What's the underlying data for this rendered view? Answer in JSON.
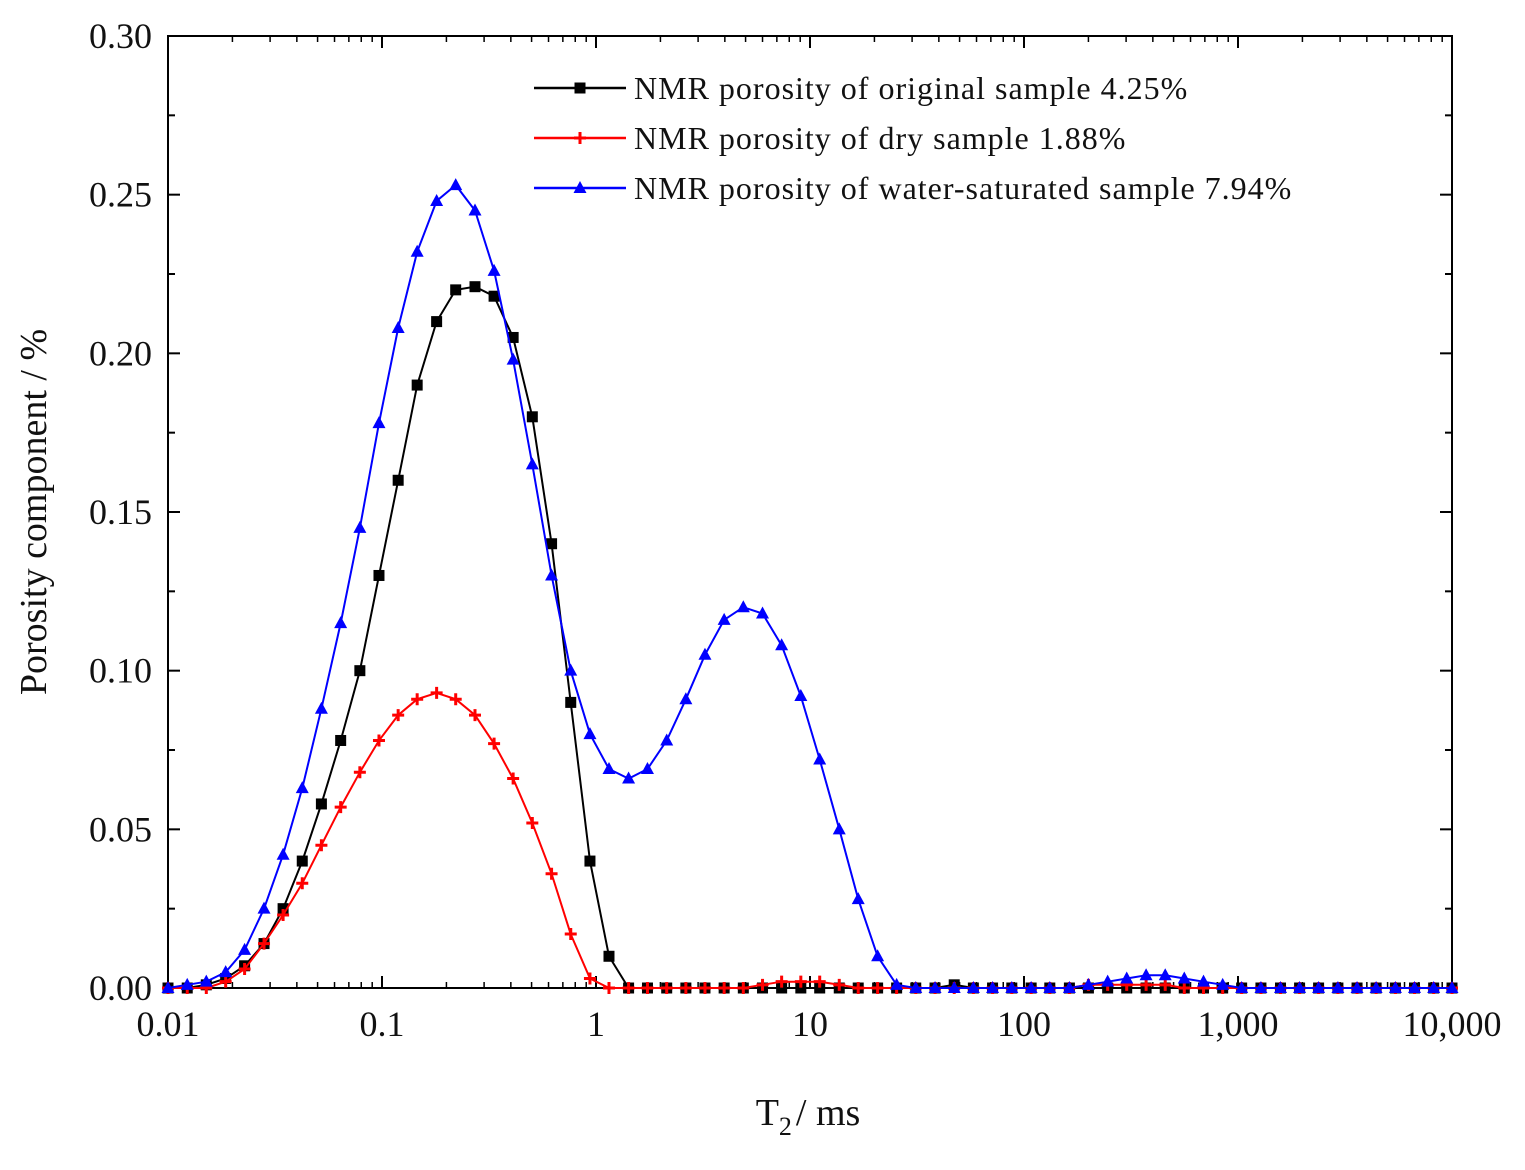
{
  "chart_data": {
    "type": "line",
    "title": "",
    "xlabel": {
      "main": "T",
      "sub": "2",
      "rest": "/ ms"
    },
    "ylabel": "Porosity component / %",
    "xscale": "log",
    "xlim": [
      0.01,
      10000
    ],
    "ylim": [
      0,
      0.3
    ],
    "xticks": [
      {
        "value": 0.01,
        "label": "0.01"
      },
      {
        "value": 0.1,
        "label": "0.1"
      },
      {
        "value": 1,
        "label": "1"
      },
      {
        "value": 10,
        "label": "10"
      },
      {
        "value": 100,
        "label": "100"
      },
      {
        "value": 1000,
        "label": "1,000"
      },
      {
        "value": 10000,
        "label": "10,000"
      }
    ],
    "yticks": [
      {
        "value": 0.0,
        "label": "0.00"
      },
      {
        "value": 0.05,
        "label": "0.05"
      },
      {
        "value": 0.1,
        "label": "0.10"
      },
      {
        "value": 0.15,
        "label": "0.15"
      },
      {
        "value": 0.2,
        "label": "0.20"
      },
      {
        "value": 0.25,
        "label": "0.25"
      },
      {
        "value": 0.3,
        "label": "0.30"
      }
    ],
    "legend_position": "top-right",
    "series": [
      {
        "name": "NMR porosity of original sample 4.25%",
        "color": "#000000",
        "marker": "square",
        "x": [
          0.01,
          0.0123,
          0.0151,
          0.0186,
          0.0228,
          0.0281,
          0.0345,
          0.0424,
          0.0521,
          0.0641,
          0.0788,
          0.0968,
          0.119,
          0.146,
          0.18,
          0.221,
          0.272,
          0.334,
          0.41,
          0.504,
          0.62,
          0.762,
          0.937,
          1.15,
          1.42,
          1.74,
          2.14,
          2.63,
          3.23,
          3.97,
          4.88,
          6.0,
          7.37,
          9.06,
          11.1,
          13.7,
          16.8,
          20.7,
          25.4,
          31.2,
          38.4,
          47.2,
          58.0,
          71.3,
          87.7,
          108,
          132,
          163,
          200,
          246,
          302,
          372,
          457,
          561,
          690,
          848,
          1040,
          1280,
          1580,
          1940,
          2380,
          2930,
          3600,
          4420,
          5440,
          6680,
          8210,
          10000
        ],
        "values": [
          0,
          0,
          0.001,
          0.003,
          0.007,
          0.014,
          0.025,
          0.04,
          0.058,
          0.078,
          0.1,
          0.13,
          0.16,
          0.19,
          0.21,
          0.22,
          0.221,
          0.218,
          0.205,
          0.18,
          0.14,
          0.09,
          0.04,
          0.01,
          0,
          0,
          0,
          0,
          0,
          0,
          0,
          0,
          0,
          0,
          0,
          0,
          0,
          0,
          0,
          0,
          0,
          0.001,
          0,
          0,
          0,
          0,
          0,
          0,
          0,
          0,
          0,
          0,
          0,
          0,
          0,
          0,
          0,
          0,
          0,
          0,
          0,
          0,
          0,
          0,
          0,
          0,
          0,
          0
        ]
      },
      {
        "name": "NMR porosity of dry sample 1.88%",
        "color": "#ff0000",
        "marker": "plus",
        "x": [
          0.01,
          0.0123,
          0.0151,
          0.0186,
          0.0228,
          0.0281,
          0.0345,
          0.0424,
          0.0521,
          0.0641,
          0.0788,
          0.0968,
          0.119,
          0.146,
          0.18,
          0.221,
          0.272,
          0.334,
          0.41,
          0.504,
          0.62,
          0.762,
          0.937,
          1.15,
          1.42,
          1.74,
          2.14,
          2.63,
          3.23,
          3.97,
          4.88,
          6.0,
          7.37,
          9.06,
          11.1,
          13.7,
          16.8,
          20.7,
          25.4,
          31.2,
          38.4,
          47.2,
          58.0,
          71.3,
          87.7,
          108,
          132,
          163,
          200,
          246,
          302,
          372,
          457,
          561,
          690,
          848,
          1040,
          1280,
          1580,
          1940,
          2380,
          2930,
          3600,
          4420,
          5440,
          6680,
          8210,
          10000
        ],
        "values": [
          0,
          0,
          0,
          0.002,
          0.006,
          0.014,
          0.023,
          0.033,
          0.045,
          0.057,
          0.068,
          0.078,
          0.086,
          0.091,
          0.093,
          0.091,
          0.086,
          0.077,
          0.066,
          0.052,
          0.036,
          0.017,
          0.003,
          0,
          0,
          0,
          0,
          0,
          0,
          0,
          0,
          0.001,
          0.002,
          0.002,
          0.002,
          0.001,
          0,
          0,
          0,
          0,
          0,
          0,
          0,
          0,
          0,
          0,
          0,
          0,
          0.001,
          0.001,
          0.001,
          0.001,
          0.001,
          0,
          0,
          0,
          0,
          0,
          0,
          0,
          0,
          0,
          0,
          0,
          0,
          0,
          0,
          0
        ]
      },
      {
        "name": "NMR porosity of water-saturated sample 7.94%",
        "color": "#0000ff",
        "marker": "triangle",
        "x": [
          0.01,
          0.0123,
          0.0151,
          0.0186,
          0.0228,
          0.0281,
          0.0345,
          0.0424,
          0.0521,
          0.0641,
          0.0788,
          0.0968,
          0.119,
          0.146,
          0.18,
          0.221,
          0.272,
          0.334,
          0.41,
          0.504,
          0.62,
          0.762,
          0.937,
          1.15,
          1.42,
          1.74,
          2.14,
          2.63,
          3.23,
          3.97,
          4.88,
          6.0,
          7.37,
          9.06,
          11.1,
          13.7,
          16.8,
          20.7,
          25.4,
          31.2,
          38.4,
          47.2,
          58.0,
          71.3,
          87.7,
          108,
          132,
          163,
          200,
          246,
          302,
          372,
          457,
          561,
          690,
          848,
          1040,
          1280,
          1580,
          1940,
          2380,
          2930,
          3600,
          4420,
          5440,
          6680,
          8210,
          10000
        ],
        "values": [
          0,
          0.001,
          0.002,
          0.005,
          0.012,
          0.025,
          0.042,
          0.063,
          0.088,
          0.115,
          0.145,
          0.178,
          0.208,
          0.232,
          0.248,
          0.253,
          0.245,
          0.226,
          0.198,
          0.165,
          0.13,
          0.1,
          0.08,
          0.069,
          0.066,
          0.069,
          0.078,
          0.091,
          0.105,
          0.116,
          0.12,
          0.118,
          0.108,
          0.092,
          0.072,
          0.05,
          0.028,
          0.01,
          0.001,
          0,
          0,
          0,
          0,
          0,
          0,
          0,
          0,
          0,
          0.001,
          0.002,
          0.003,
          0.004,
          0.004,
          0.003,
          0.002,
          0.001,
          0,
          0,
          0,
          0,
          0,
          0,
          0,
          0,
          0,
          0,
          0,
          0
        ]
      }
    ]
  }
}
